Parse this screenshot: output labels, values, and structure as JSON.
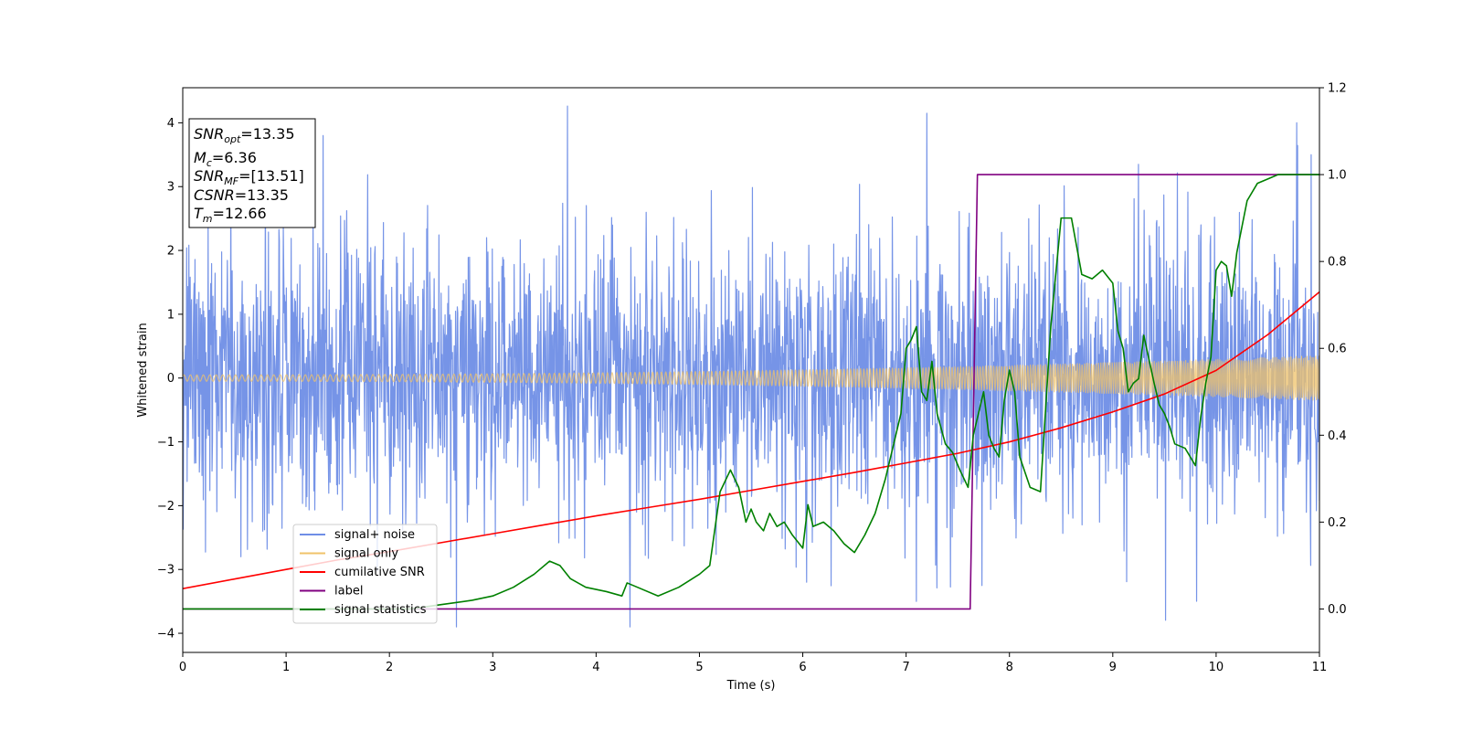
{
  "chart_data": {
    "type": "line",
    "xlabel": "Time (s)",
    "ylabel": "Whitened strain",
    "xlim": [
      0,
      11
    ],
    "ylim": [
      -4.3,
      4.55
    ],
    "y2lim": [
      -0.1,
      1.2
    ],
    "grid": false,
    "x_ticks": [
      0,
      1,
      2,
      3,
      4,
      5,
      6,
      7,
      8,
      9,
      10,
      11
    ],
    "x_tick_labels": [
      "0",
      "1",
      "2",
      "3",
      "4",
      "5",
      "6",
      "7",
      "8",
      "9",
      "10",
      "11"
    ],
    "y_ticks": [
      -4,
      -3,
      -2,
      -1,
      0,
      1,
      2,
      3,
      4
    ],
    "y_tick_labels": [
      "−4",
      "−3",
      "−2",
      "−1",
      "0",
      "1",
      "2",
      "3",
      "4"
    ],
    "y2_ticks": [
      0.0,
      0.2,
      0.4,
      0.6,
      0.8,
      1.0,
      1.2
    ],
    "y2_tick_labels": [
      "0.0",
      "0.2",
      "0.4",
      "0.6",
      "0.8",
      "1.0",
      "1.2"
    ],
    "annotation_box": {
      "lines": [
        {
          "var": "SNR",
          "sub": "opt",
          "value": "=13.35"
        },
        {
          "var": "M",
          "sub": "c",
          "value": "=6.36"
        },
        {
          "var": "SNR",
          "sub": "MF",
          "value": "=[13.51]"
        },
        {
          "var": "CSNR",
          "sub": "",
          "value": "=13.35"
        },
        {
          "var": "T",
          "sub": "m",
          "value": "=12.66"
        }
      ]
    },
    "legend_placement": "lower-left",
    "series": [
      {
        "name": "signal+ noise",
        "color": "#6f8ee6",
        "axis": "left",
        "kind": "noise",
        "noise_sigma": 1.0,
        "peaks": [
          [
            1.36,
            3.8
          ],
          [
            7.2,
            4.15
          ],
          [
            10.78,
            4.0
          ],
          [
            10.92,
            3.5
          ],
          [
            9.25,
            3.35
          ],
          [
            2.65,
            -3.9
          ],
          [
            4.33,
            -3.9
          ],
          [
            7.1,
            -3.5
          ]
        ]
      },
      {
        "name": "signal only",
        "color": "#f0c36a",
        "axis": "left",
        "kind": "chirp",
        "amplitude_start": 0.05,
        "amplitude_end": 0.35,
        "freq_start": 16,
        "freq_end": 60
      },
      {
        "name": "cumilative SNR",
        "color": "#ff0000",
        "axis": "left",
        "x": [
          0,
          0.5,
          1,
          1.5,
          2,
          2.5,
          3,
          3.5,
          4,
          4.5,
          5,
          5.5,
          6,
          6.5,
          7,
          7.5,
          8,
          8.5,
          9,
          9.5,
          10,
          10.5,
          11
        ],
        "y": [
          -3.3,
          -3.15,
          -3.0,
          -2.85,
          -2.72,
          -2.58,
          -2.44,
          -2.3,
          -2.16,
          -2.03,
          -1.9,
          -1.76,
          -1.62,
          -1.48,
          -1.33,
          -1.18,
          -1.0,
          -0.78,
          -0.53,
          -0.25,
          0.12,
          0.68,
          1.35
        ]
      },
      {
        "name": "label",
        "color": "#800080",
        "axis": "right",
        "x": [
          0,
          7.62,
          7.69,
          11
        ],
        "y": [
          0,
          0,
          1,
          1
        ]
      },
      {
        "name": "signal statistics",
        "color": "#008000",
        "axis": "right",
        "x": [
          0,
          2.2,
          2.5,
          2.8,
          3.0,
          3.2,
          3.4,
          3.55,
          3.65,
          3.75,
          3.9,
          4.1,
          4.25,
          4.3,
          4.4,
          4.6,
          4.8,
          5.0,
          5.1,
          5.2,
          5.3,
          5.38,
          5.45,
          5.5,
          5.55,
          5.62,
          5.68,
          5.75,
          5.82,
          5.9,
          6.0,
          6.05,
          6.1,
          6.2,
          6.3,
          6.4,
          6.5,
          6.6,
          6.7,
          6.8,
          6.9,
          6.95,
          7.0,
          7.05,
          7.1,
          7.15,
          7.2,
          7.25,
          7.3,
          7.38,
          7.45,
          7.52,
          7.6,
          7.65,
          7.7,
          7.75,
          7.8,
          7.85,
          7.9,
          7.95,
          8.0,
          8.05,
          8.1,
          8.2,
          8.3,
          8.4,
          8.5,
          8.6,
          8.7,
          8.8,
          8.9,
          9.0,
          9.05,
          9.1,
          9.15,
          9.2,
          9.25,
          9.3,
          9.4,
          9.45,
          9.5,
          9.55,
          9.6,
          9.7,
          9.8,
          9.85,
          9.9,
          9.95,
          10.0,
          10.05,
          10.1,
          10.15,
          10.2,
          10.25,
          10.3,
          10.4,
          10.5,
          10.6,
          10.7,
          10.8,
          10.9,
          11
        ],
        "y": [
          0,
          0,
          0.01,
          0.02,
          0.03,
          0.05,
          0.08,
          0.11,
          0.1,
          0.07,
          0.05,
          0.04,
          0.03,
          0.06,
          0.05,
          0.03,
          0.05,
          0.08,
          0.1,
          0.27,
          0.32,
          0.28,
          0.2,
          0.23,
          0.2,
          0.18,
          0.22,
          0.19,
          0.2,
          0.17,
          0.14,
          0.24,
          0.19,
          0.2,
          0.18,
          0.15,
          0.13,
          0.17,
          0.22,
          0.3,
          0.4,
          0.45,
          0.6,
          0.62,
          0.65,
          0.5,
          0.48,
          0.57,
          0.45,
          0.38,
          0.36,
          0.32,
          0.28,
          0.4,
          0.45,
          0.5,
          0.4,
          0.37,
          0.35,
          0.48,
          0.55,
          0.5,
          0.35,
          0.28,
          0.27,
          0.65,
          0.9,
          0.9,
          0.77,
          0.76,
          0.78,
          0.75,
          0.64,
          0.6,
          0.5,
          0.52,
          0.53,
          0.63,
          0.52,
          0.47,
          0.45,
          0.42,
          0.38,
          0.37,
          0.33,
          0.44,
          0.52,
          0.58,
          0.78,
          0.8,
          0.79,
          0.72,
          0.82,
          0.88,
          0.94,
          0.98,
          0.99,
          1.0,
          1.0,
          1.0,
          1.0,
          1.0
        ]
      }
    ]
  }
}
